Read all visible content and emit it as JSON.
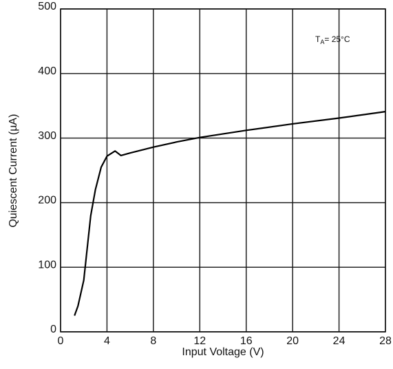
{
  "chart_data": {
    "type": "line",
    "xlabel": "Input Voltage (V)",
    "ylabel": "Quiescent Current (µA)",
    "annotation": {
      "symbol": "T",
      "subscript": "A",
      "text": "= 25°C"
    },
    "x": [
      1.2,
      1.5,
      2,
      2.3,
      2.6,
      3,
      3.5,
      4,
      4.7,
      5.2,
      6,
      8,
      10,
      12,
      16,
      20,
      24,
      28
    ],
    "series": [
      {
        "color": "#000000",
        "values": [
          25,
          40,
          80,
          130,
          180,
          220,
          255,
          272,
          280,
          273,
          277,
          286,
          294,
          301,
          312,
          322,
          331,
          341
        ]
      }
    ],
    "xlim": [
      0,
      28
    ],
    "xticks": [
      0,
      4,
      8,
      12,
      16,
      20,
      24,
      28
    ],
    "ylim": [
      0,
      500
    ],
    "yticks": [
      0,
      100,
      200,
      300,
      400,
      500
    ],
    "grid": true
  }
}
